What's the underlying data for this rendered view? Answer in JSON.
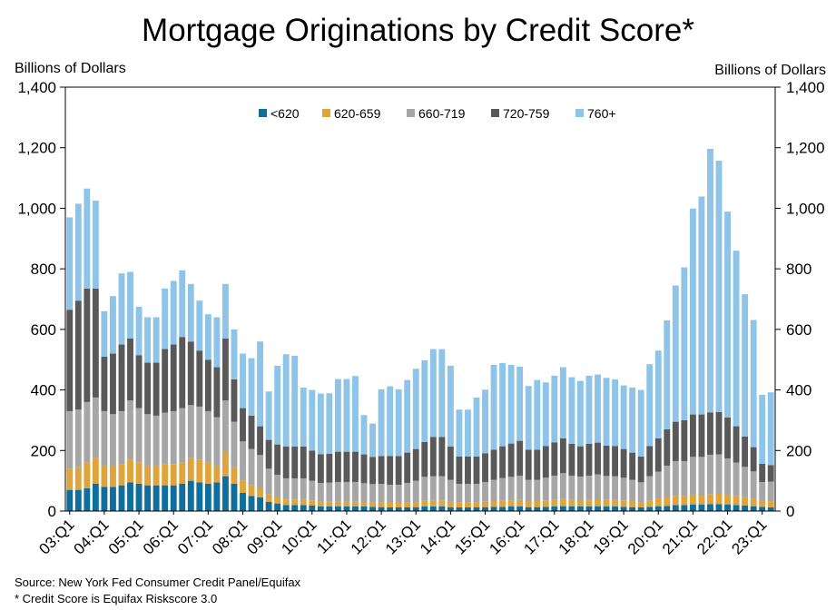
{
  "title": "Mortgage Originations by Credit Score*",
  "y_axis_label_left": "Billions of Dollars",
  "y_axis_label_right": "Billions of Dollars",
  "source": "Source: New York Fed Consumer Credit Panel/Equifax",
  "footnote": "* Credit Score is Equifax Riskscore 3.0",
  "colors": {
    "<620": "#0e6e9e",
    "620-659": "#e0a43c",
    "660-719": "#a6a6a6",
    "720-759": "#595959",
    "760+": "#8ec4e8"
  },
  "chart_data": {
    "type": "bar",
    "stacked": true,
    "ylim": [
      0,
      1400
    ],
    "y_ticks": [
      "0",
      "200",
      "400",
      "600",
      "800",
      "1,000",
      "1,200",
      "1,400"
    ],
    "tick_labels": [
      "03:Q1",
      "04:Q1",
      "05:Q1",
      "06:Q1",
      "07:Q1",
      "08:Q1",
      "09:Q1",
      "10:Q1",
      "11:Q1",
      "12:Q1",
      "13:Q1",
      "14:Q1",
      "15:Q1",
      "16:Q1",
      "17:Q1",
      "18:Q1",
      "19:Q1",
      "20:Q1",
      "21:Q1",
      "22:Q1",
      "23:Q1"
    ],
    "legend_position": "top-center",
    "grid": false,
    "categories": [
      "03:Q1",
      "03:Q2",
      "03:Q3",
      "03:Q4",
      "04:Q1",
      "04:Q2",
      "04:Q3",
      "04:Q4",
      "05:Q1",
      "05:Q2",
      "05:Q3",
      "05:Q4",
      "06:Q1",
      "06:Q2",
      "06:Q3",
      "06:Q4",
      "07:Q1",
      "07:Q2",
      "07:Q3",
      "07:Q4",
      "08:Q1",
      "08:Q2",
      "08:Q3",
      "08:Q4",
      "09:Q1",
      "09:Q2",
      "09:Q3",
      "09:Q4",
      "10:Q1",
      "10:Q2",
      "10:Q3",
      "10:Q4",
      "11:Q1",
      "11:Q2",
      "11:Q3",
      "11:Q4",
      "12:Q1",
      "12:Q2",
      "12:Q3",
      "12:Q4",
      "13:Q1",
      "13:Q2",
      "13:Q3",
      "13:Q4",
      "14:Q1",
      "14:Q2",
      "14:Q3",
      "14:Q4",
      "15:Q1",
      "15:Q2",
      "15:Q3",
      "15:Q4",
      "16:Q1",
      "16:Q2",
      "16:Q3",
      "16:Q4",
      "17:Q1",
      "17:Q2",
      "17:Q3",
      "17:Q4",
      "18:Q1",
      "18:Q2",
      "18:Q3",
      "18:Q4",
      "19:Q1",
      "19:Q2",
      "19:Q3",
      "19:Q4",
      "20:Q1",
      "20:Q2",
      "20:Q3",
      "20:Q4",
      "21:Q1",
      "21:Q2",
      "21:Q3",
      "21:Q4",
      "22:Q1",
      "22:Q2",
      "22:Q3",
      "22:Q4",
      "23:Q1",
      "23:Q2"
    ],
    "series": [
      {
        "name": "<620",
        "values": [
          70,
          70,
          75,
          90,
          80,
          80,
          85,
          95,
          90,
          85,
          85,
          85,
          85,
          90,
          100,
          95,
          90,
          95,
          115,
          90,
          60,
          50,
          45,
          30,
          25,
          20,
          20,
          20,
          18,
          15,
          15,
          15,
          15,
          15,
          15,
          14,
          13,
          12,
          12,
          12,
          13,
          15,
          15,
          15,
          13,
          12,
          12,
          12,
          13,
          14,
          14,
          15,
          15,
          13,
          13,
          14,
          15,
          16,
          15,
          15,
          15,
          16,
          15,
          15,
          14,
          13,
          12,
          14,
          16,
          17,
          20,
          20,
          22,
          22,
          23,
          23,
          22,
          20,
          18,
          16,
          14,
          12
        ]
      },
      {
        "name": "620-659",
        "values": [
          70,
          75,
          85,
          85,
          70,
          70,
          70,
          75,
          70,
          65,
          65,
          70,
          70,
          70,
          75,
          75,
          70,
          55,
          80,
          55,
          40,
          35,
          30,
          25,
          20,
          18,
          18,
          18,
          17,
          16,
          16,
          16,
          16,
          16,
          15,
          15,
          15,
          15,
          15,
          16,
          17,
          20,
          20,
          20,
          18,
          16,
          16,
          16,
          18,
          19,
          20,
          20,
          22,
          20,
          20,
          21,
          22,
          24,
          22,
          21,
          22,
          23,
          22,
          22,
          21,
          20,
          18,
          21,
          24,
          28,
          30,
          30,
          32,
          32,
          33,
          34,
          32,
          30,
          28,
          25,
          22,
          20
        ]
      },
      {
        "name": "660-719",
        "values": [
          190,
          190,
          200,
          200,
          180,
          170,
          175,
          195,
          180,
          170,
          165,
          170,
          175,
          180,
          175,
          175,
          170,
          160,
          170,
          150,
          130,
          120,
          110,
          85,
          75,
          70,
          70,
          70,
          65,
          62,
          63,
          65,
          65,
          65,
          62,
          60,
          62,
          60,
          60,
          65,
          70,
          78,
          80,
          80,
          72,
          62,
          62,
          62,
          65,
          70,
          75,
          78,
          80,
          70,
          70,
          75,
          80,
          85,
          80,
          78,
          80,
          82,
          79,
          78,
          75,
          70,
          65,
          80,
          90,
          105,
          115,
          115,
          125,
          125,
          130,
          130,
          120,
          110,
          100,
          90,
          60,
          65
        ]
      },
      {
        "name": "720-759",
        "values": [
          335,
          360,
          375,
          360,
          180,
          200,
          220,
          205,
          175,
          170,
          175,
          210,
          220,
          235,
          210,
          185,
          170,
          165,
          205,
          140,
          110,
          110,
          95,
          95,
          100,
          105,
          105,
          105,
          100,
          95,
          95,
          100,
          100,
          100,
          95,
          90,
          92,
          95,
          95,
          100,
          105,
          115,
          130,
          130,
          110,
          90,
          90,
          90,
          95,
          100,
          105,
          110,
          115,
          100,
          100,
          105,
          110,
          115,
          105,
          100,
          105,
          105,
          100,
          100,
          95,
          90,
          85,
          100,
          110,
          120,
          130,
          135,
          140,
          140,
          140,
          140,
          135,
          120,
          100,
          80,
          60,
          55
        ]
      },
      {
        "name": "760+",
        "values": [
          305,
          320,
          330,
          290,
          150,
          190,
          235,
          220,
          160,
          150,
          150,
          200,
          210,
          220,
          190,
          165,
          150,
          165,
          180,
          165,
          180,
          190,
          280,
          160,
          260,
          305,
          300,
          195,
          200,
          200,
          200,
          240,
          240,
          250,
          130,
          110,
          220,
          230,
          220,
          240,
          265,
          270,
          290,
          290,
          267,
          155,
          155,
          195,
          210,
          280,
          275,
          260,
          245,
          210,
          230,
          210,
          220,
          235,
          220,
          216,
          225,
          225,
          224,
          220,
          210,
          215,
          220,
          270,
          290,
          360,
          450,
          505,
          680,
          720,
          870,
          830,
          680,
          580,
          470,
          420,
          228,
          240
        ]
      }
    ]
  }
}
